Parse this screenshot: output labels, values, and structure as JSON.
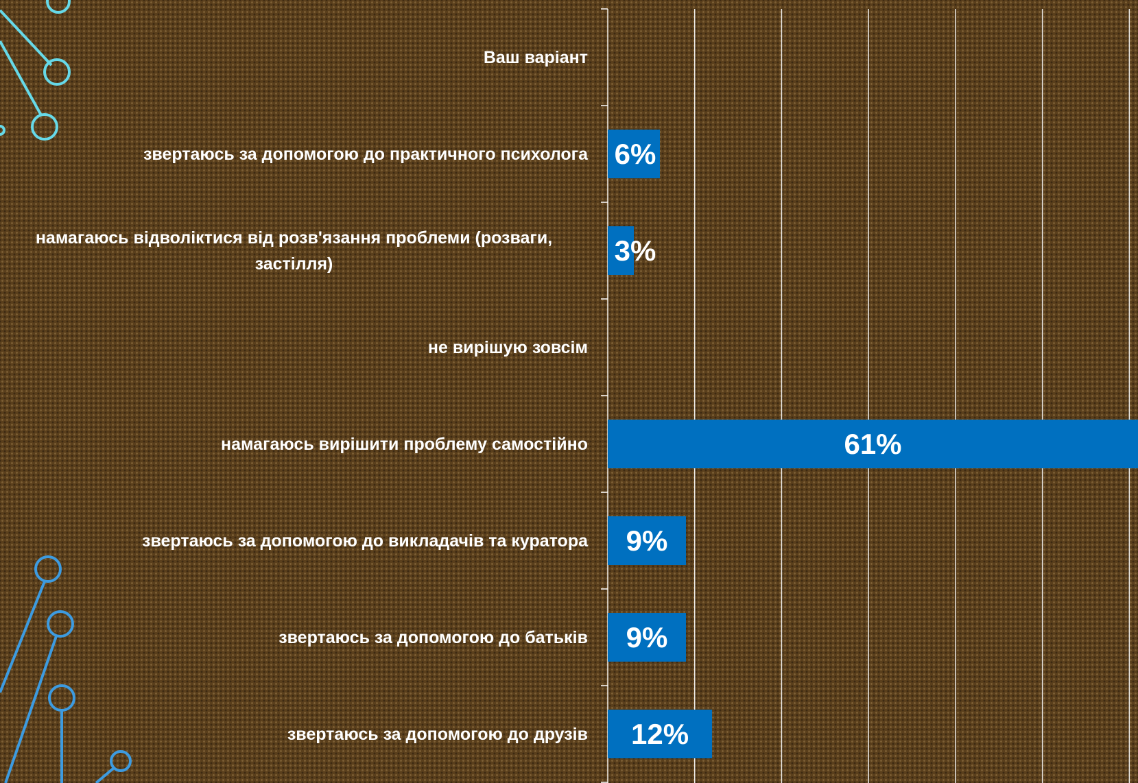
{
  "chart_data": {
    "type": "barh",
    "categories": [
      "Ваш варіант",
      "звертаюсь за допомогою до практичного психолога",
      "намагаюсь відволіктися від розв'язання проблеми (розваги, застілля)",
      "не вирішую зовсім",
      "намагаюсь вирішити проблему самостійно",
      "звертаюсь за допомогою до викладачів та куратора",
      "звертаюсь за допомогою до батьків",
      "звертаюсь за допомогою до друзів"
    ],
    "values": [
      0,
      6,
      3,
      0,
      61,
      9,
      9,
      12
    ],
    "value_labels": [
      null,
      "6%",
      "3%",
      null,
      "61%",
      "9%",
      "9%",
      "12%"
    ],
    "color": "#0070c0",
    "xlim": [
      0,
      61
    ],
    "gridlines": [
      0,
      10,
      20,
      30,
      40,
      50,
      60
    ],
    "grid": true
  }
}
